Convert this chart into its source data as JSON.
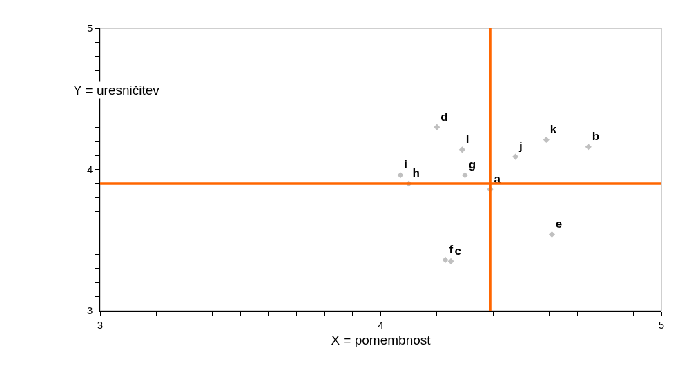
{
  "chart_data": {
    "type": "scatter",
    "xlabel": "X = pomembnost",
    "ylabel": "Y = uresničitev",
    "x": [
      4.39,
      4.74,
      4.25,
      4.2,
      4.61,
      4.23,
      4.3,
      4.1,
      4.07,
      4.48,
      4.59,
      4.29
    ],
    "series": [
      {
        "color": "#c0c0c0",
        "values": [
          3.86,
          4.16,
          3.35,
          4.3,
          3.54,
          3.36,
          3.96,
          3.9,
          3.96,
          4.09,
          4.21,
          4.14
        ],
        "value_labels": [
          "a",
          "b",
          "c",
          "d",
          "e",
          "f",
          "g",
          "h",
          "i",
          "j",
          "k",
          "l"
        ]
      }
    ],
    "marker": "diamond",
    "grid": false,
    "xlim": [
      3,
      5
    ],
    "ylim": [
      3,
      5
    ],
    "xticks": [
      3,
      {
        "value": 3.1,
        "label": null
      },
      {
        "value": 3.2,
        "label": null
      },
      {
        "value": 3.3,
        "label": null
      },
      {
        "value": 3.4,
        "label": null
      },
      {
        "value": 3.5,
        "label": null
      },
      {
        "value": 3.6,
        "label": null
      },
      {
        "value": 3.7,
        "label": null
      },
      {
        "value": 3.8,
        "label": null
      },
      {
        "value": 3.9,
        "label": null
      },
      4,
      {
        "value": 4.1,
        "label": null
      },
      {
        "value": 4.2,
        "label": null
      },
      {
        "value": 4.3,
        "label": null
      },
      {
        "value": 4.4,
        "label": null
      },
      {
        "value": 4.5,
        "label": null
      },
      {
        "value": 4.6,
        "label": null
      },
      {
        "value": 4.7,
        "label": null
      },
      {
        "value": 4.8,
        "label": null
      },
      {
        "value": 4.9,
        "label": null
      },
      5
    ],
    "yticks": [
      3,
      {
        "value": 3.1,
        "label": null
      },
      {
        "value": 3.2,
        "label": null
      },
      {
        "value": 3.3,
        "label": null
      },
      {
        "value": 3.4,
        "label": null
      },
      {
        "value": 3.5,
        "label": null
      },
      {
        "value": 3.6,
        "label": null
      },
      {
        "value": 3.7,
        "label": null
      },
      {
        "value": 3.8,
        "label": null
      },
      {
        "value": 3.9,
        "label": null
      },
      4,
      {
        "value": 4.1,
        "label": null
      },
      {
        "value": 4.2,
        "label": null
      },
      {
        "value": 4.3,
        "label": null
      },
      {
        "value": 4.4,
        "label": null
      },
      {
        "value": 4.5,
        "label": null
      },
      {
        "value": 4.6,
        "label": null
      },
      {
        "value": 4.7,
        "label": null
      },
      {
        "value": 4.8,
        "label": null
      },
      {
        "value": 4.9,
        "label": null
      },
      5
    ],
    "ref_lines": [
      {
        "axis": "x",
        "value": 4.39,
        "color": "#ff6600"
      },
      {
        "axis": "y",
        "value": 3.9,
        "color": "#ff6600"
      }
    ]
  }
}
